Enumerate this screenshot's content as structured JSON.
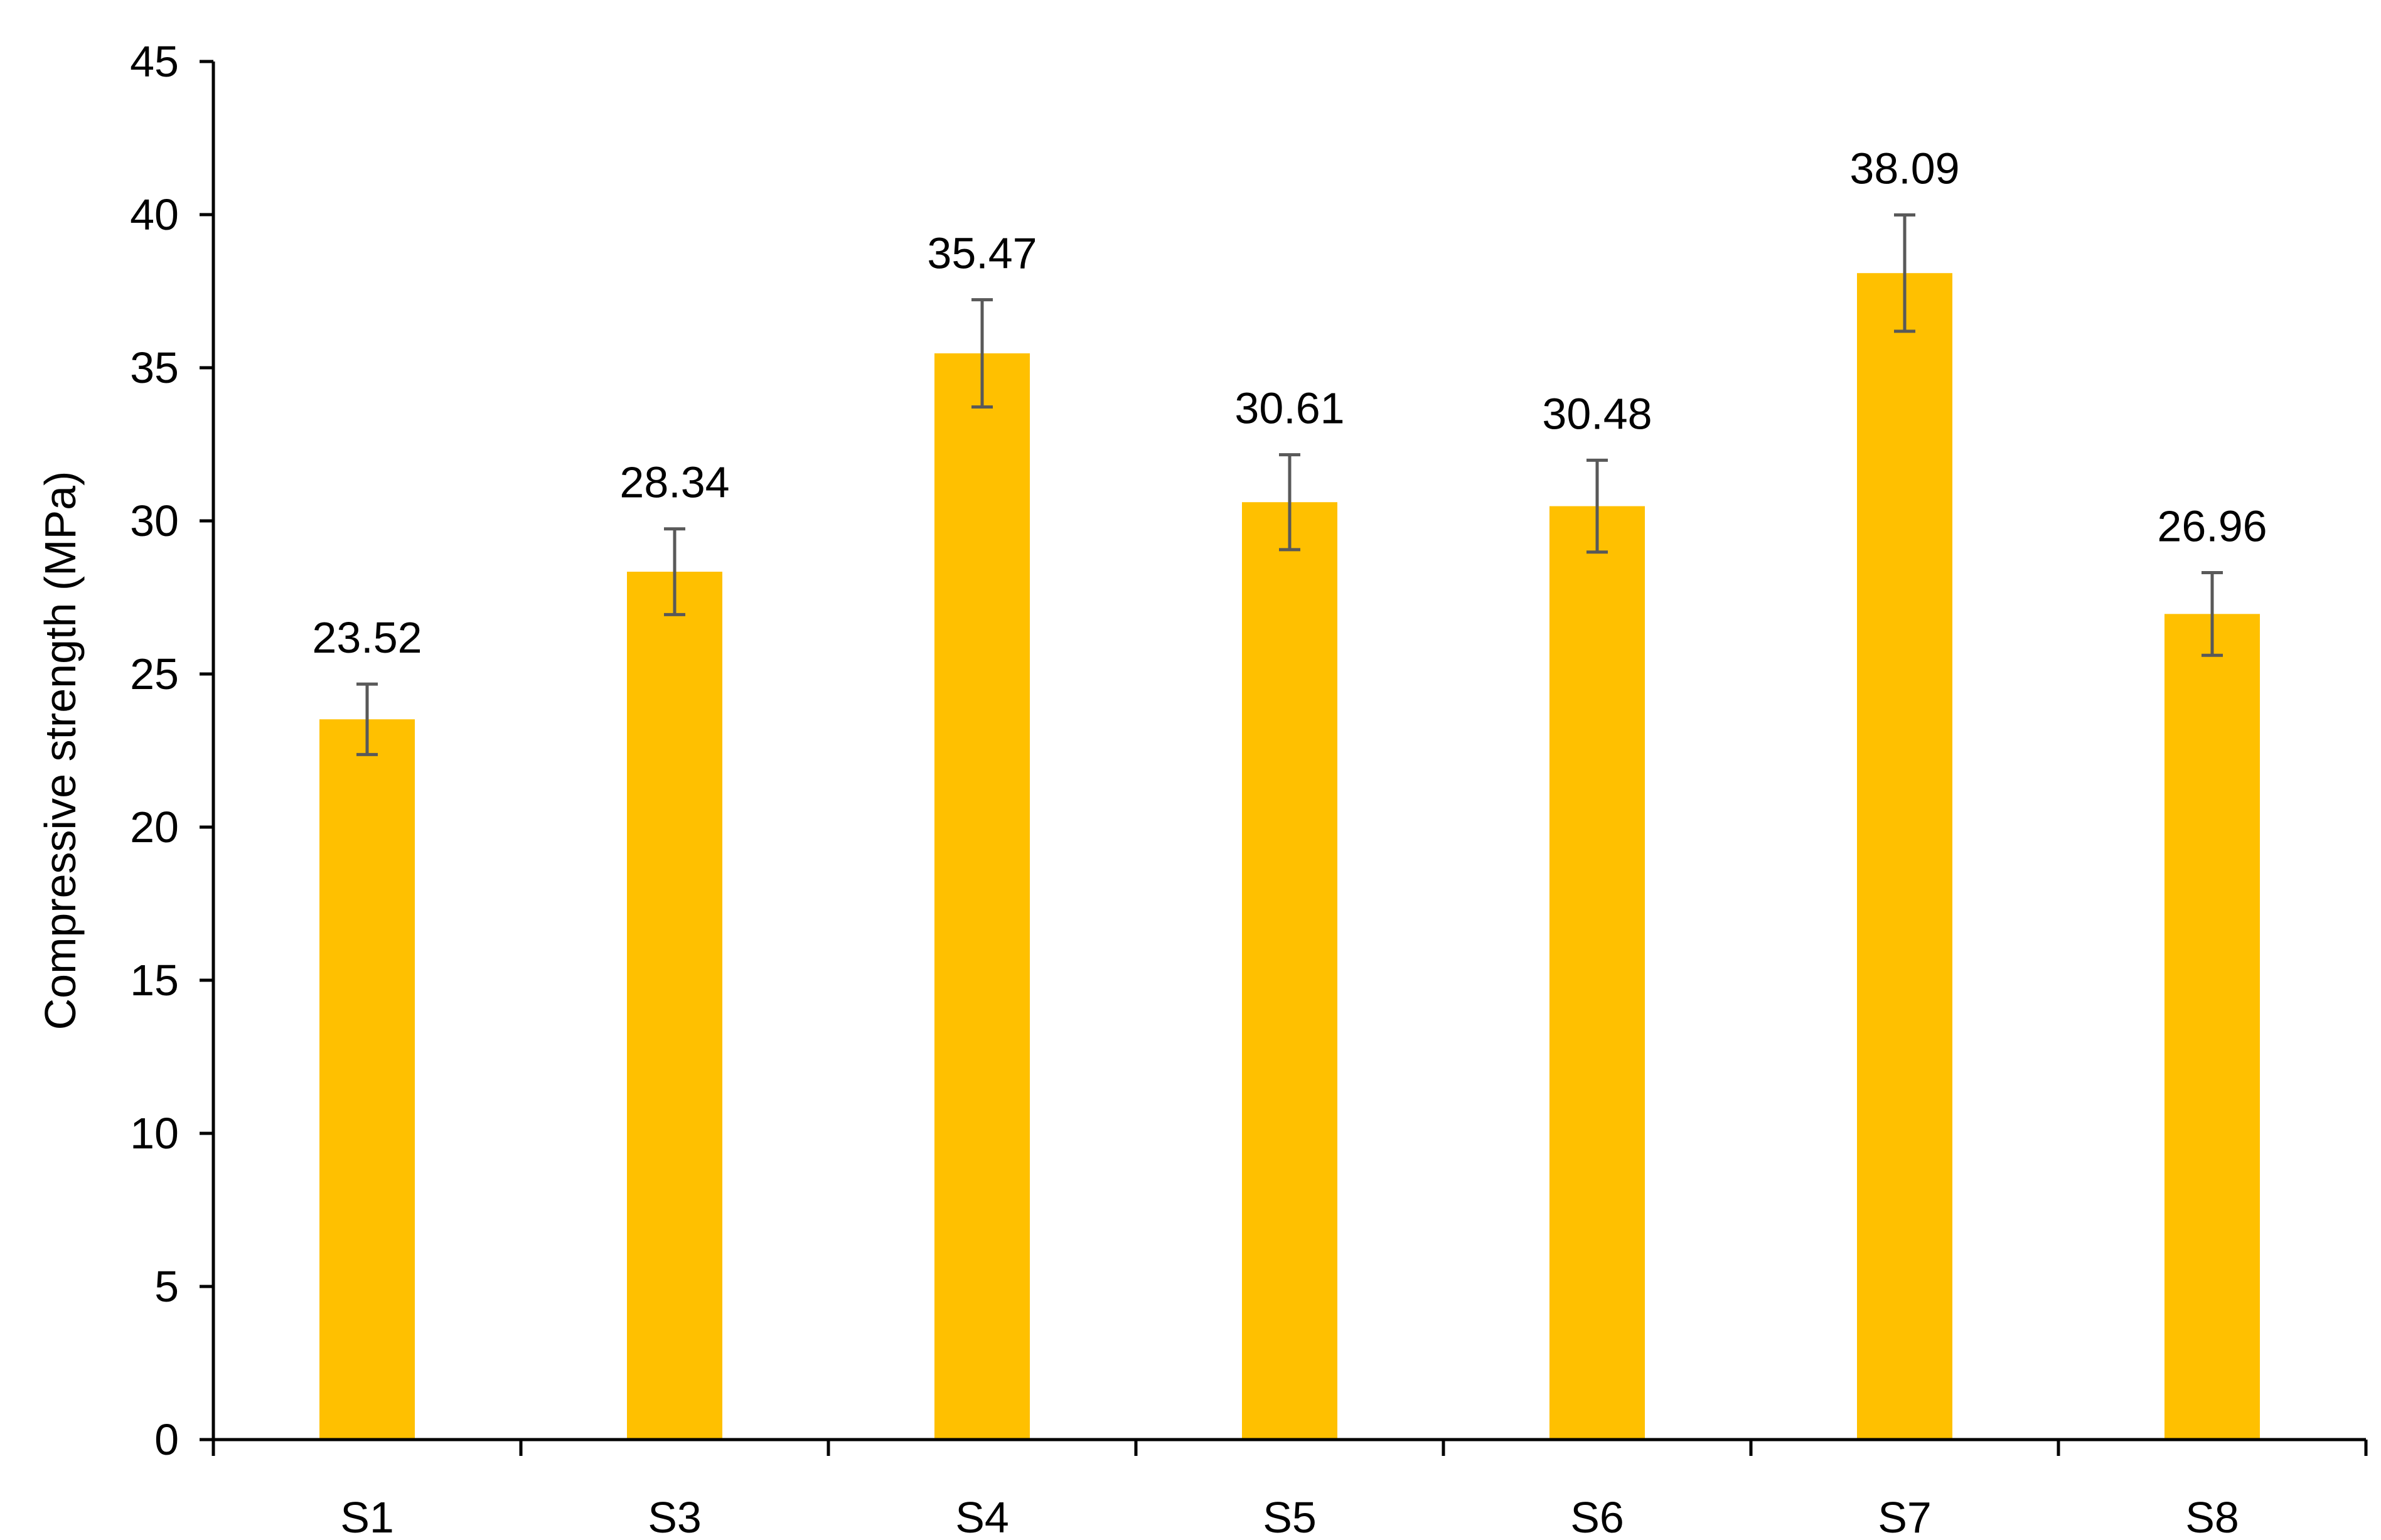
{
  "chart_data": {
    "type": "bar",
    "title": "",
    "xlabel": "",
    "ylabel": "Compressive strength (MPa)",
    "ylim": [
      0,
      45
    ],
    "yticks": [
      0,
      5,
      10,
      15,
      20,
      25,
      30,
      35,
      40,
      45
    ],
    "grid": false,
    "legend": "none",
    "categories": [
      "S1",
      "S3",
      "S4",
      "S5",
      "S6",
      "S7",
      "S8"
    ],
    "values": [
      23.52,
      28.34,
      35.47,
      30.61,
      30.48,
      38.09,
      26.96
    ],
    "value_labels": [
      "23.52",
      "28.34",
      "35.47",
      "30.61",
      "30.48",
      "38.09",
      "26.96"
    ],
    "error": [
      1.15,
      1.4,
      1.75,
      1.55,
      1.5,
      1.9,
      1.35
    ],
    "colors": {
      "bar": "#FFC000",
      "axis": "#000000",
      "error_bar": "#595959"
    }
  }
}
